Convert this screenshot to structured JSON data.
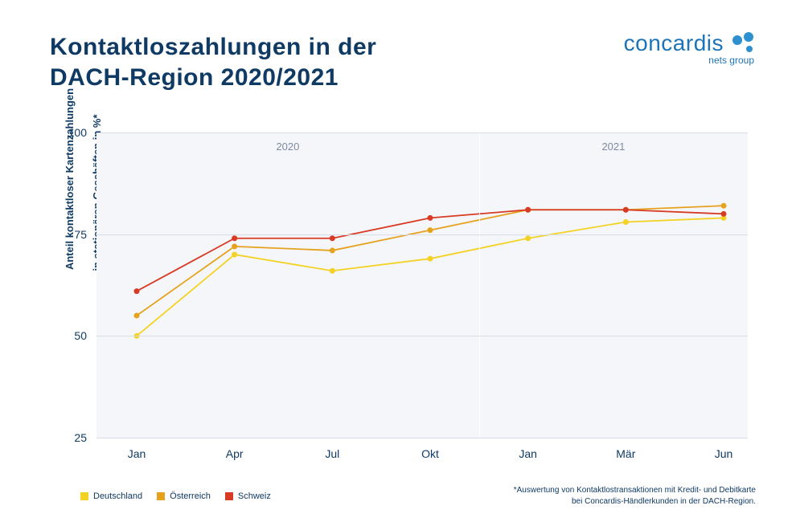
{
  "title_line1": "Kontaktloszahlungen in der",
  "title_line2": "DACH-Region 2020/2021",
  "logo": {
    "text": "concardis",
    "sub": "nets group",
    "dot_color": "#2f90d0"
  },
  "y_axis_label_l1": "Anteil kontaktloser Kartenzahlungen",
  "y_axis_label_l2": "in stationären Geschäften in %*",
  "footnote_l1": "*Auswertung von Kontaktlostransaktionen mit Kredit- und Debitkarte",
  "footnote_l2": "bei Concardis-Händlerkunden in der DACH-Region.",
  "chart": {
    "type": "line",
    "plot_bg": "#f4f6fa",
    "page_bg": "#ffffff",
    "grid_color": "#d6dde6",
    "text_color": "#0f3a63",
    "tick_fontsize": 14,
    "section_label_color": "#7e8aa0",
    "ylim": [
      25,
      100
    ],
    "yticks": [
      25,
      50,
      75,
      100
    ],
    "x_categories": [
      "Jan",
      "Apr",
      "Jul",
      "Okt",
      "Jan",
      "Mär",
      "Jun"
    ],
    "sections": [
      {
        "label": "2020",
        "start_idx": 0,
        "end_idx": 4
      },
      {
        "label": "2021",
        "start_idx": 4,
        "end_idx": 6
      }
    ],
    "line_width": 1.8,
    "marker_radius": 3.5,
    "series": [
      {
        "name": "Deutschland",
        "color": "#f4d223",
        "values": [
          50,
          70,
          66,
          69,
          74,
          78,
          79
        ]
      },
      {
        "name": "Österreich",
        "color": "#e6a21d",
        "values": [
          55,
          72,
          71,
          76,
          81,
          81,
          82
        ]
      },
      {
        "name": "Schweiz",
        "color": "#d83a24",
        "values": [
          61,
          74,
          74,
          79,
          81,
          81,
          80
        ]
      }
    ]
  }
}
